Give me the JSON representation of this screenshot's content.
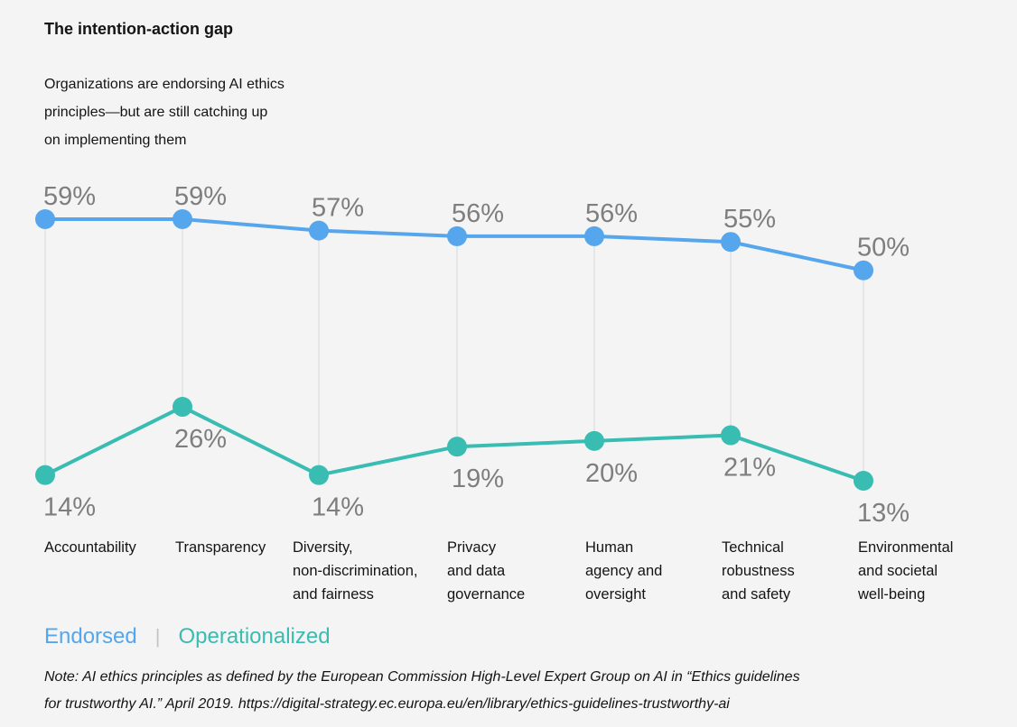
{
  "header": {
    "title": "The intention-action gap",
    "subtitle": "Organizations are endorsing AI ethics\nprinciples—but are still catching up\non implementing them"
  },
  "legend": {
    "separator": "|"
  },
  "note": {
    "text": "Note: AI ethics principles as defined by the European Commission High-Level Expert Group on AI in “Ethics guidelines\nfor trustworthy AI.” April 2019. https://digital-strategy.ec.europa.eu/en/library/ethics-guidelines-trustworthy-ai"
  },
  "colors": {
    "background": "#f4f4f4",
    "endorsed": "#55a6ec",
    "operationalized": "#39bcb1",
    "value_label": "#7e7e7e",
    "category_label": "#141414",
    "gridline": "#d9d9d9",
    "legend_separator": "#c4c4c4"
  },
  "chart_data": {
    "type": "line",
    "title": "The intention-action gap",
    "subtitle": "Organizations are endorsing AI ethics principles—but are still catching up on implementing them",
    "categories": [
      "Accountability",
      "Transparency",
      "Diversity,\nnon-discrimination,\nand fairness",
      "Privacy\nand data\ngovernance",
      "Human\nagency and\noversight",
      "Technical\nrobustness\nand safety",
      "Environmental\nand societal\nwell-being"
    ],
    "series": [
      {
        "name": "Endorsed",
        "color": "#55a6ec",
        "values": [
          59,
          59,
          57,
          56,
          56,
          55,
          50
        ]
      },
      {
        "name": "Operationalized",
        "color": "#39bcb1",
        "values": [
          14,
          26,
          14,
          19,
          20,
          21,
          13
        ]
      }
    ],
    "value_suffix": "%",
    "value_labels": "shown",
    "ylim": [
      0,
      100
    ],
    "grid": "vertical connector between paired points only",
    "legend_position": "bottom-left",
    "xlabel": "",
    "ylabel": ""
  }
}
